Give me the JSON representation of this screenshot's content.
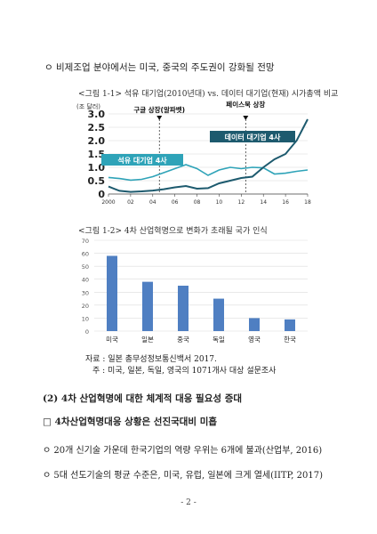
{
  "intro_bullet": "ㅇ 비제조업 분야에서는 미국, 중국의 주도권이 강화될 전망",
  "figure1": {
    "caption": "<그림 1-1> 석유 대기업(2010년대) vs. 데이터 대기업(현재) 시가총액 비교",
    "chart_data": {
      "type": "line",
      "ylabel": "(조 달러)",
      "yticks": [
        "3.0",
        "2.5",
        "2.0",
        "1.5",
        "1.0",
        "0.5",
        "0"
      ],
      "ylim": [
        0,
        3.0
      ],
      "xticks": [
        "2000",
        "02",
        "04",
        "06",
        "08",
        "10",
        "12",
        "14",
        "16",
        "18"
      ],
      "x": [
        2000,
        2001,
        2002,
        2003,
        2004,
        2005,
        2006,
        2007,
        2008,
        2009,
        2010,
        2011,
        2012,
        2013,
        2014,
        2015,
        2016,
        2017,
        2018
      ],
      "series": [
        {
          "name": "석유 대기업 4사",
          "values": [
            0.62,
            0.58,
            0.52,
            0.55,
            0.65,
            0.8,
            0.95,
            1.1,
            0.95,
            0.7,
            0.9,
            1.0,
            0.95,
            1.0,
            0.98,
            0.75,
            0.78,
            0.85,
            0.9
          ]
        },
        {
          "name": "데이터 대기업 4사",
          "values": [
            0.28,
            0.12,
            0.08,
            0.1,
            0.13,
            0.18,
            0.25,
            0.3,
            0.2,
            0.22,
            0.4,
            0.5,
            0.6,
            0.65,
            1.0,
            1.3,
            1.5,
            2.0,
            2.8
          ]
        }
      ],
      "annotations": [
        {
          "label": "구글 상장(알파벳)",
          "x": 2004.6
        },
        {
          "label": "페이스북 상장",
          "x": 2012.4
        }
      ]
    }
  },
  "figure2": {
    "caption": "<그림 1-2> 4차 산업혁명으로 변화가 초래될 국가 인식",
    "chart_data": {
      "type": "bar",
      "categories": [
        "미국",
        "일본",
        "중국",
        "독일",
        "영국",
        "한국"
      ],
      "values": [
        58,
        38,
        35,
        25,
        10,
        9
      ],
      "ylim": [
        0,
        70
      ],
      "yticks": [
        "70",
        "60",
        "50",
        "40",
        "30",
        "20",
        "10",
        "0"
      ],
      "colors": {
        "bar": "#4f7fc2"
      }
    },
    "source": "자료 : 일본 총무성정보통신백서 2017.",
    "note": "주 : 미국, 일본, 독일, 영국의 1071개사 대상 설문조사"
  },
  "section_heading": "(2) 4차 산업혁명에 대한 체계적 대응 필요성 증대",
  "subheading": "□ 4차산업혁명대응 상황은 선진국대비 미흡",
  "bullets": [
    "ㅇ 20개 신기술 가운데 한국기업의 역량 우위는 6개에 불과(산업부, 2016)",
    "ㅇ 5대 선도기술의 평균 수준은, 미국, 유럽, 일본에 크게 열세(IITP, 2017)"
  ],
  "page_number": "- 2 -",
  "colors": {
    "oil": "#2ea3b8",
    "data": "#1d5a6e",
    "bar": "#4f7fc2"
  }
}
